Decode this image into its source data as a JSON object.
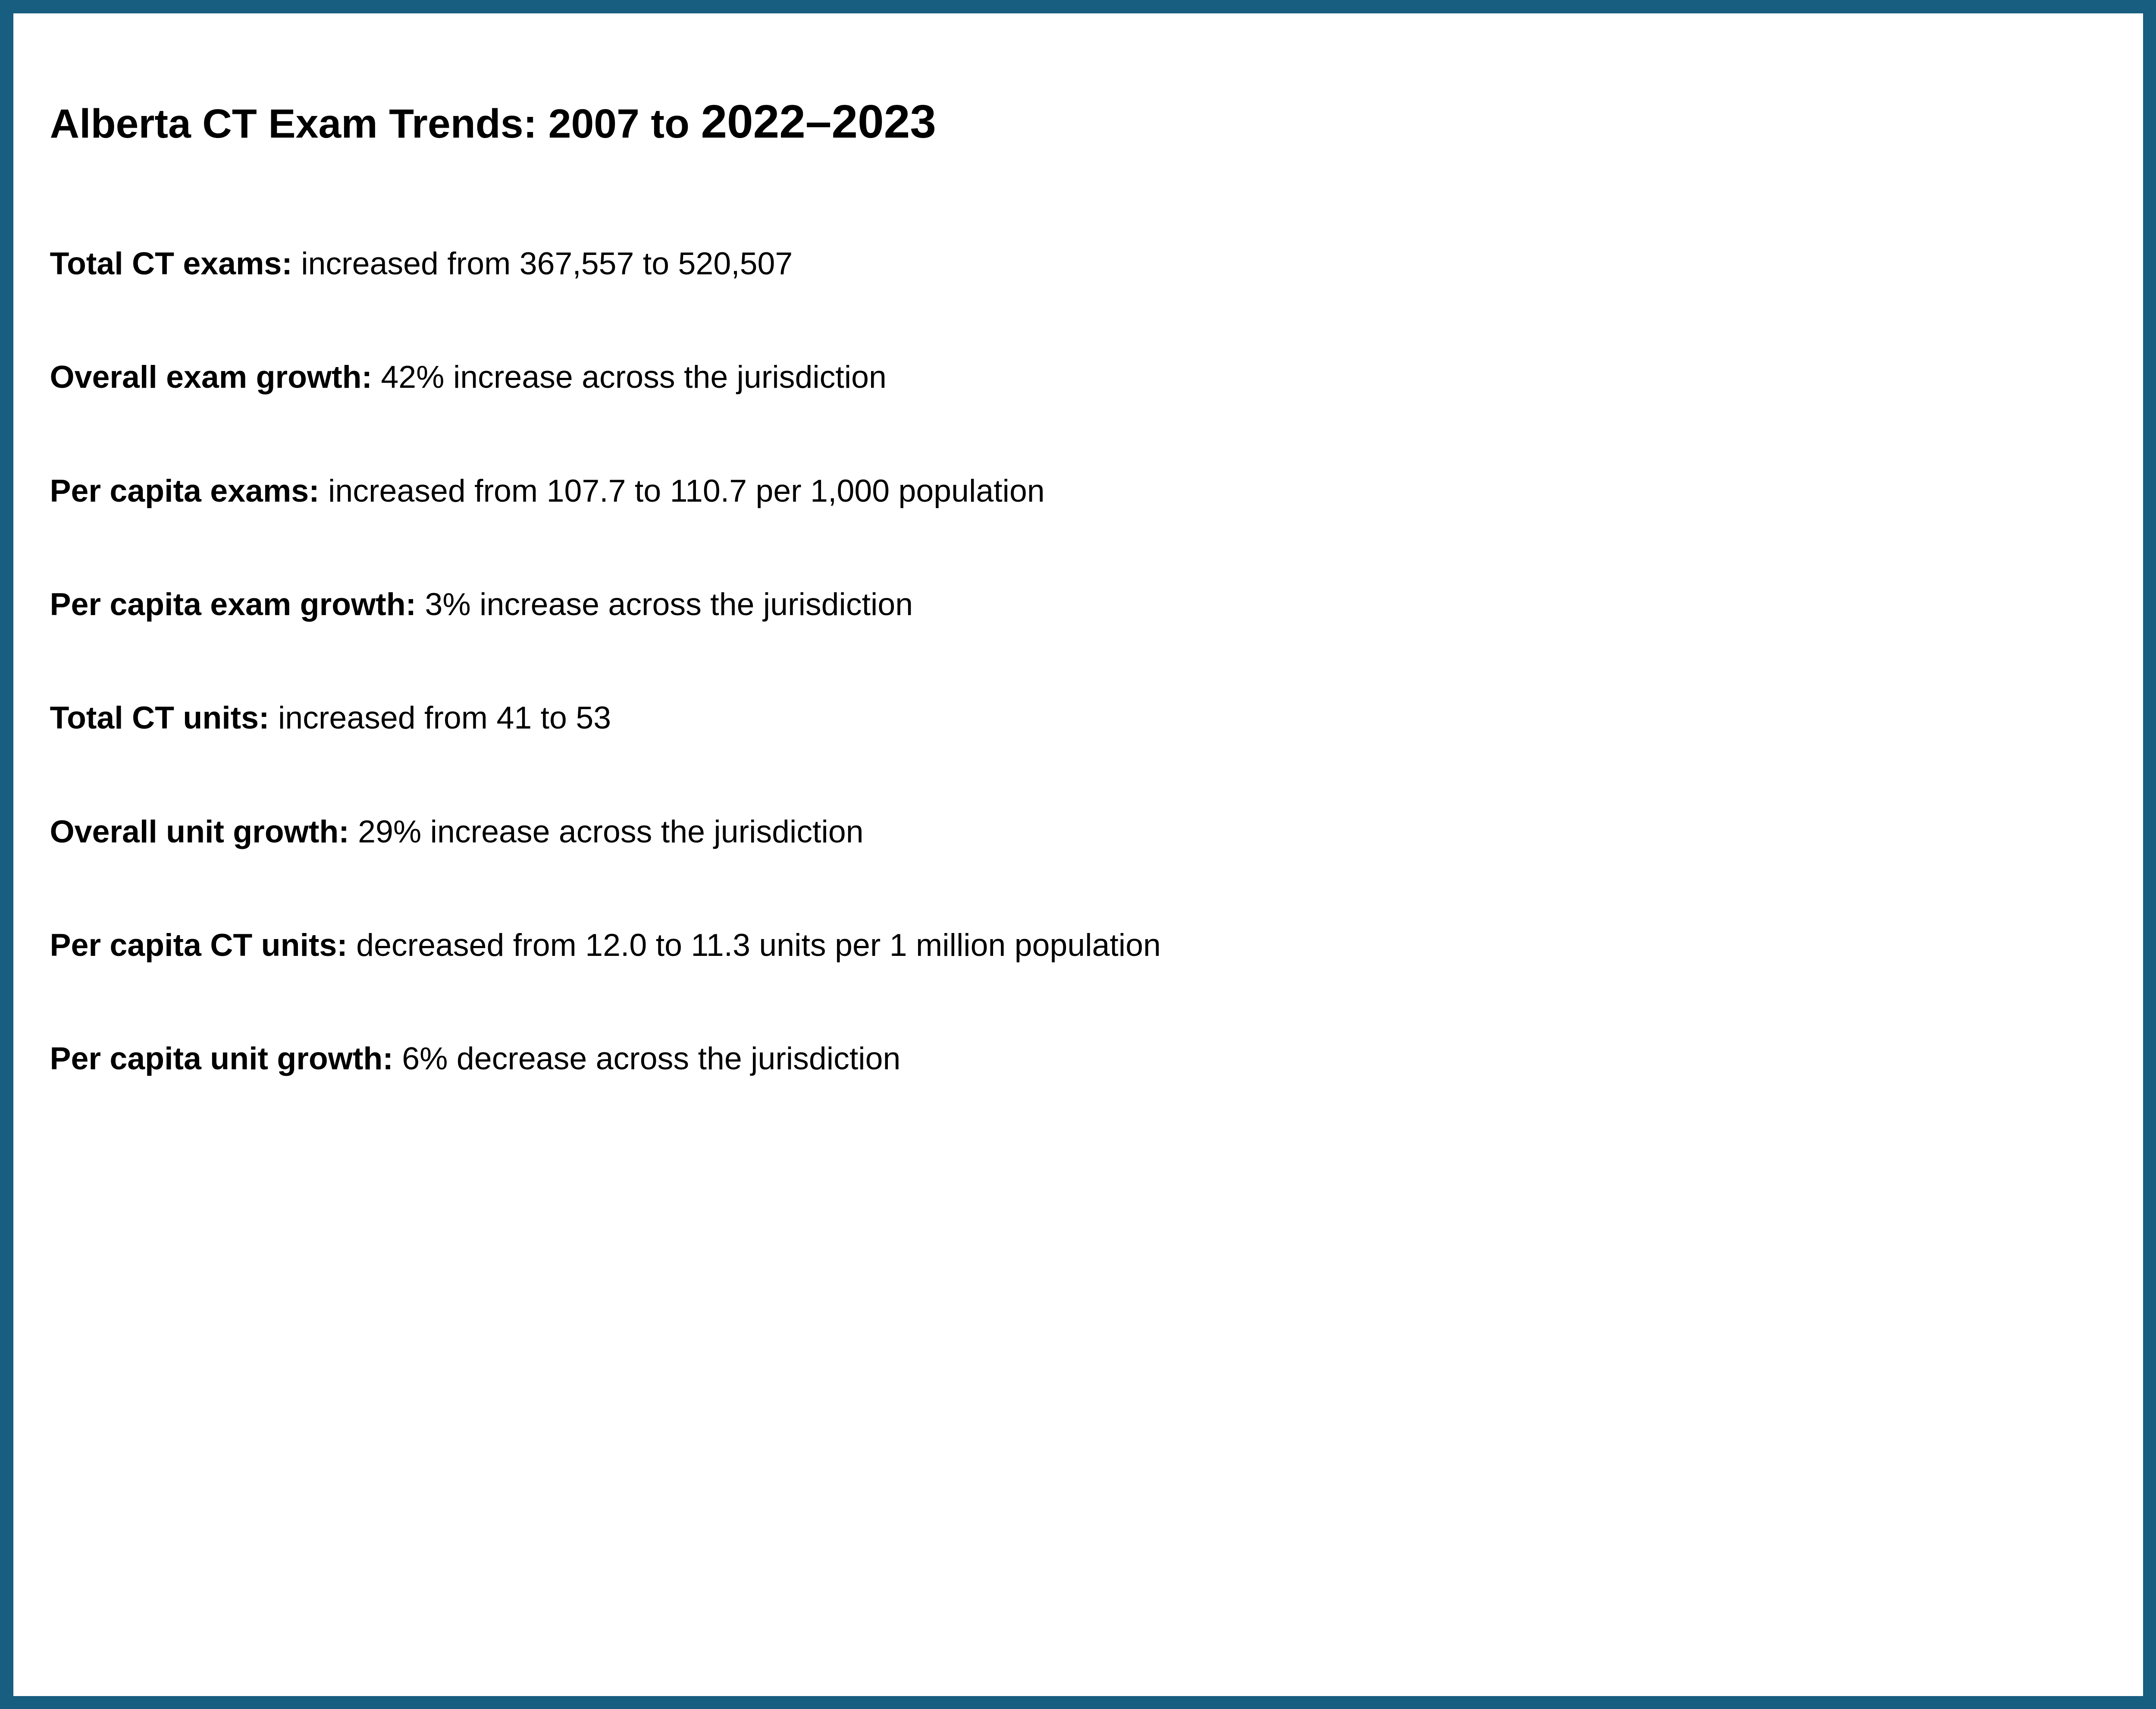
{
  "colors": {
    "border": "#175e80",
    "card_background": "#ffffff",
    "text": "#000000"
  },
  "title": {
    "prefix": "Alberta CT Exam Trends: 2007 to ",
    "year_range": "2022–2023"
  },
  "stats": [
    {
      "label": "Total CT exams:",
      "text": "increased from 367,557 to 520,507"
    },
    {
      "label": "Overall exam growth:",
      "text": "42% increase across the jurisdiction"
    },
    {
      "label": "Per capita exams:",
      "text": "increased from 107.7 to 110.7 per 1,000 population"
    },
    {
      "label": "Per capita exam growth:",
      "text": "3% increase across the jurisdiction"
    },
    {
      "label": "Total CT units:",
      "text": "increased from 41 to 53"
    },
    {
      "label": "Overall unit growth:",
      "text": "29% increase across the jurisdiction"
    },
    {
      "label": "Per capita CT units:",
      "text": "decreased from 12.0 to 11.3 units per 1 million population"
    },
    {
      "label": "Per capita unit growth:",
      "text": "6% decrease across the jurisdiction"
    }
  ]
}
